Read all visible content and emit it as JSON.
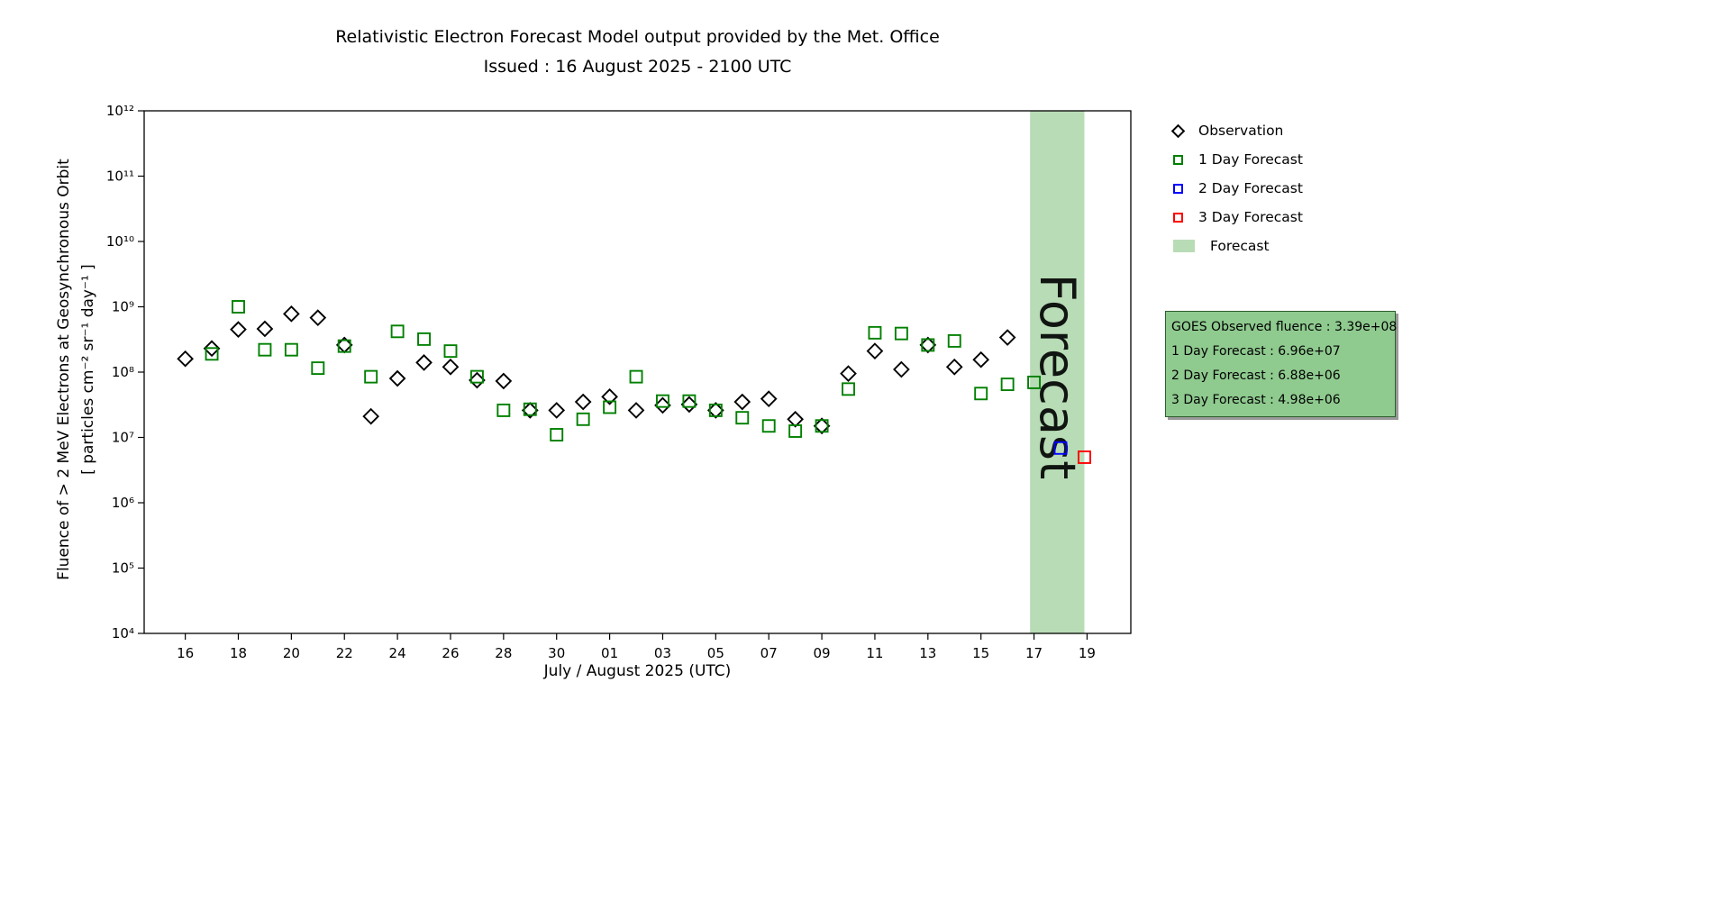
{
  "header": {
    "title": "Relativistic Electron Forecast Model output provided by the Met. Office",
    "subtitle": "Issued : 16 August 2025 - 2100 UTC"
  },
  "legend": {
    "items": [
      {
        "label": "Observation",
        "marker": "diamond",
        "color": "#000000"
      },
      {
        "label": "1 Day Forecast",
        "marker": "square",
        "color": "#008000"
      },
      {
        "label": "2 Day Forecast",
        "marker": "square",
        "color": "#0000ff"
      },
      {
        "label": "3 Day Forecast",
        "marker": "square",
        "color": "#ff0000"
      },
      {
        "label": "Forecast",
        "marker": "patch",
        "color": "#b8dcb6"
      }
    ]
  },
  "info_box": {
    "bg_color": "#8fca8f",
    "lines": [
      "GOES Observed fluence : 3.39e+08",
      "1 Day Forecast : 6.96e+07",
      "2 Day Forecast : 6.88e+06",
      "3 Day Forecast : 4.98e+06"
    ]
  },
  "chart_data": {
    "type": "scatter",
    "title": "Relativistic Electron Forecast Model output provided by the Met. Office",
    "subtitle": "Issued : 16 August 2025 - 2100 UTC",
    "xlabel": "July / August 2025 (UTC)",
    "ylabel_line1": "Fluence of > 2 MeV Electrons at Geosynchronous Orbit",
    "ylabel_line2": "[ particles cm⁻² sr⁻¹ day⁻¹ ]",
    "x_encoding": "days since 16 July 2025 (0 = Jul 16, 31 = Aug 16, 34 = Aug 19)",
    "y_scale": "log10",
    "xlim": [
      -1.55,
      35.65
    ],
    "ylim_log10": [
      4,
      12
    ],
    "grid": false,
    "legend_position": "upper-right-outside",
    "x_ticks": [
      {
        "x": 0,
        "label": "16"
      },
      {
        "x": 2,
        "label": "18"
      },
      {
        "x": 4,
        "label": "20"
      },
      {
        "x": 6,
        "label": "22"
      },
      {
        "x": 8,
        "label": "24"
      },
      {
        "x": 10,
        "label": "26"
      },
      {
        "x": 12,
        "label": "28"
      },
      {
        "x": 14,
        "label": "30"
      },
      {
        "x": 16,
        "label": "01"
      },
      {
        "x": 18,
        "label": "03"
      },
      {
        "x": 20,
        "label": "05"
      },
      {
        "x": 22,
        "label": "07"
      },
      {
        "x": 24,
        "label": "09"
      },
      {
        "x": 26,
        "label": "11"
      },
      {
        "x": 28,
        "label": "13"
      },
      {
        "x": 30,
        "label": "15"
      },
      {
        "x": 32,
        "label": "17"
      },
      {
        "x": 34,
        "label": "19"
      }
    ],
    "y_ticks": [
      {
        "exp": 4,
        "label": "10⁴"
      },
      {
        "exp": 5,
        "label": "10⁵"
      },
      {
        "exp": 6,
        "label": "10⁶"
      },
      {
        "exp": 7,
        "label": "10⁷"
      },
      {
        "exp": 8,
        "label": "10⁸"
      },
      {
        "exp": 9,
        "label": "10⁹"
      },
      {
        "exp": 10,
        "label": "10¹⁰"
      },
      {
        "exp": 11,
        "label": "10¹¹"
      },
      {
        "exp": 12,
        "label": "10¹²"
      }
    ],
    "forecast_band": {
      "x_start": 31.85,
      "x_end": 33.9,
      "color": "#b8dcb6",
      "label": "Forecast",
      "label_color": "#808080"
    },
    "series": [
      {
        "name": "Observation",
        "data_name": "observation",
        "marker": "diamond",
        "color": "#000000",
        "points": [
          {
            "x": 0,
            "y": 160000000.0
          },
          {
            "x": 1,
            "y": 230000000.0
          },
          {
            "x": 2,
            "y": 450000000.0
          },
          {
            "x": 3,
            "y": 460000000.0
          },
          {
            "x": 4,
            "y": 780000000.0
          },
          {
            "x": 5,
            "y": 680000000.0
          },
          {
            "x": 6,
            "y": 260000000.0
          },
          {
            "x": 7,
            "y": 21000000.0
          },
          {
            "x": 8,
            "y": 80000000.0
          },
          {
            "x": 9,
            "y": 140000000.0
          },
          {
            "x": 10,
            "y": 120000000.0
          },
          {
            "x": 11,
            "y": 75000000.0
          },
          {
            "x": 12,
            "y": 73000000.0
          },
          {
            "x": 13,
            "y": 26000000.0
          },
          {
            "x": 14,
            "y": 26000000.0
          },
          {
            "x": 15,
            "y": 35000000.0
          },
          {
            "x": 16,
            "y": 42000000.0
          },
          {
            "x": 17,
            "y": 26000000.0
          },
          {
            "x": 18,
            "y": 31000000.0
          },
          {
            "x": 19,
            "y": 32000000.0
          },
          {
            "x": 20,
            "y": 26000000.0
          },
          {
            "x": 21,
            "y": 35000000.0
          },
          {
            "x": 22,
            "y": 39000000.0
          },
          {
            "x": 23,
            "y": 19000000.0
          },
          {
            "x": 24,
            "y": 15000000.0
          },
          {
            "x": 25,
            "y": 95000000.0
          },
          {
            "x": 26,
            "y": 210000000.0
          },
          {
            "x": 27,
            "y": 110000000.0
          },
          {
            "x": 28,
            "y": 260000000.0
          },
          {
            "x": 29,
            "y": 120000000.0
          },
          {
            "x": 30,
            "y": 155000000.0
          },
          {
            "x": 31,
            "y": 339000000.0
          }
        ]
      },
      {
        "name": "1 Day Forecast",
        "data_name": "one-day-forecast",
        "marker": "square",
        "color": "#008000",
        "points": [
          {
            "x": 1,
            "y": 190000000.0
          },
          {
            "x": 2,
            "y": 1000000000.0
          },
          {
            "x": 3,
            "y": 220000000.0
          },
          {
            "x": 4,
            "y": 220000000.0
          },
          {
            "x": 5,
            "y": 115000000.0
          },
          {
            "x": 6,
            "y": 250000000.0
          },
          {
            "x": 7,
            "y": 85000000.0
          },
          {
            "x": 8,
            "y": 420000000.0
          },
          {
            "x": 9,
            "y": 320000000.0
          },
          {
            "x": 10,
            "y": 210000000.0
          },
          {
            "x": 11,
            "y": 85000000.0
          },
          {
            "x": 12,
            "y": 26000000.0
          },
          {
            "x": 13,
            "y": 27000000.0
          },
          {
            "x": 14,
            "y": 11000000.0
          },
          {
            "x": 15,
            "y": 19000000.0
          },
          {
            "x": 16,
            "y": 29000000.0
          },
          {
            "x": 17,
            "y": 85000000.0
          },
          {
            "x": 18,
            "y": 36000000.0
          },
          {
            "x": 19,
            "y": 36000000.0
          },
          {
            "x": 20,
            "y": 26000000.0
          },
          {
            "x": 21,
            "y": 20000000.0
          },
          {
            "x": 22,
            "y": 15000000.0
          },
          {
            "x": 23,
            "y": 12500000.0
          },
          {
            "x": 24,
            "y": 15000000.0
          },
          {
            "x": 25,
            "y": 55000000.0
          },
          {
            "x": 26,
            "y": 400000000.0
          },
          {
            "x": 27,
            "y": 390000000.0
          },
          {
            "x": 28,
            "y": 260000000.0
          },
          {
            "x": 29,
            "y": 300000000.0
          },
          {
            "x": 30,
            "y": 47000000.0
          },
          {
            "x": 31,
            "y": 65000000.0
          },
          {
            "x": 32,
            "y": 69600000.0
          }
        ]
      },
      {
        "name": "2 Day Forecast",
        "data_name": "two-day-forecast",
        "marker": "square",
        "color": "#0000ff",
        "points": [
          {
            "x": 33,
            "y": 6880000.0
          }
        ]
      },
      {
        "name": "3 Day Forecast",
        "data_name": "three-day-forecast",
        "marker": "square",
        "color": "#ff0000",
        "points": [
          {
            "x": 33.9,
            "y": 4980000.0
          }
        ]
      }
    ]
  }
}
